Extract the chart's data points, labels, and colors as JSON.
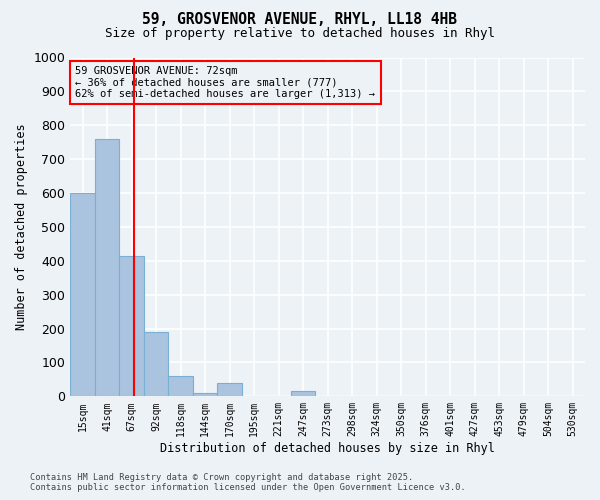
{
  "title_line1": "59, GROSVENOR AVENUE, RHYL, LL18 4HB",
  "title_line2": "Size of property relative to detached houses in Rhyl",
  "xlabel": "Distribution of detached houses by size in Rhyl",
  "ylabel": "Number of detached properties",
  "bar_color": "#aac4e0",
  "bar_edge_color": "#7aafd4",
  "bin_labels": [
    "15sqm",
    "41sqm",
    "67sqm",
    "92sqm",
    "118sqm",
    "144sqm",
    "170sqm",
    "195sqm",
    "221sqm",
    "247sqm",
    "273sqm",
    "298sqm",
    "324sqm",
    "350sqm",
    "376sqm",
    "401sqm",
    "427sqm",
    "453sqm",
    "479sqm",
    "504sqm",
    "530sqm"
  ],
  "bar_values": [
    600,
    760,
    415,
    190,
    60,
    10,
    40,
    0,
    0,
    15,
    0,
    0,
    0,
    0,
    0,
    0,
    0,
    0,
    0,
    0,
    0
  ],
  "ylim": [
    0,
    1000
  ],
  "yticks": [
    0,
    100,
    200,
    300,
    400,
    500,
    600,
    700,
    800,
    900,
    1000
  ],
  "property_label": "59 GROSVENOR AVENUE: 72sqm",
  "annotation_line2": "← 36% of detached houses are smaller (777)",
  "annotation_line3": "62% of semi-detached houses are larger (1,313) →",
  "red_line_x": 2.08,
  "background_color": "#edf2f7",
  "grid_color": "#ffffff",
  "footer_line1": "Contains HM Land Registry data © Crown copyright and database right 2025.",
  "footer_line2": "Contains public sector information licensed under the Open Government Licence v3.0."
}
